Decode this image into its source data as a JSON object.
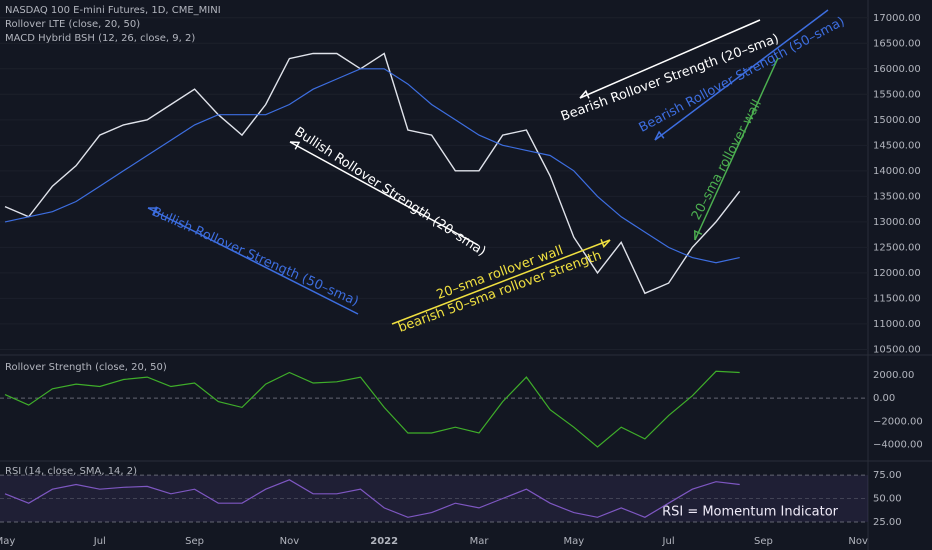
{
  "header": {
    "lines": [
      "NASDAQ 100 E-mini Futures, 1D, CME_MINI",
      "Rollover LTE (close, 20, 50)",
      "MACD Hybrid BSH (12, 26, close, 9, 2)"
    ]
  },
  "chart_data": [
    {
      "type": "line",
      "categories": [
        "May",
        null,
        null,
        null,
        "Jul",
        null,
        null,
        null,
        "Sep",
        null,
        null,
        null,
        "Nov",
        null,
        null,
        null,
        "2022",
        null,
        null,
        null,
        "Mar",
        null,
        null,
        null,
        "May",
        null,
        null,
        null,
        "Jul",
        null,
        null,
        null,
        "Sep",
        null,
        null,
        null,
        "Nov"
      ],
      "series": [
        {
          "color": "#e0e3eb",
          "values": [
            13300,
            13100,
            13700,
            14100,
            14700,
            14900,
            15000,
            15300,
            15600,
            15100,
            14700,
            15300,
            16200,
            16300,
            16300,
            16000,
            16300,
            14800,
            14700,
            14000,
            14000,
            14700,
            14800,
            13900,
            12700,
            12000,
            12600,
            11600,
            11800,
            12500,
            13000,
            13600,
            null,
            null,
            null,
            null,
            null
          ]
        },
        {
          "color": "#3d6ee0",
          "values": [
            13000,
            13100,
            13200,
            13400,
            13700,
            14000,
            14300,
            14600,
            14900,
            15100,
            15100,
            15100,
            15300,
            15600,
            15800,
            16000,
            16000,
            15700,
            15300,
            15000,
            14700,
            14500,
            14400,
            14300,
            14000,
            13500,
            13100,
            12800,
            12500,
            12300,
            12200,
            12300,
            null,
            null,
            null,
            null,
            null
          ]
        }
      ],
      "ylim": [
        10450,
        17250
      ],
      "yticks": [
        {
          "value": 10500,
          "label": "10500.00"
        },
        {
          "value": 11000,
          "label": "11000.00"
        },
        {
          "value": 11500,
          "label": "11500.00"
        },
        {
          "value": 12000,
          "label": "12000.00"
        },
        {
          "value": 12500,
          "label": "12500.00"
        },
        {
          "value": 13000,
          "label": "13000.00"
        },
        {
          "value": 13500,
          "label": "13500.00"
        },
        {
          "value": 14000,
          "label": "14000.00"
        },
        {
          "value": 14500,
          "label": "14500.00"
        },
        {
          "value": 15000,
          "label": "15000.00"
        },
        {
          "value": 15500,
          "label": "15500.00"
        },
        {
          "value": 16000,
          "label": "16000.00"
        },
        {
          "value": 16500,
          "label": "16500.00"
        },
        {
          "value": 17000,
          "label": "17000.00"
        }
      ],
      "annotations": [
        {
          "text": "Bearish Rollover Strength (20–sma)",
          "color": "#ffffff"
        },
        {
          "text": "Bearish Rollover Strength (50–sma)",
          "color": "#3d6ee0"
        },
        {
          "text": "20–sma rollover wall",
          "color": "#4caf50"
        },
        {
          "text": "Bullish Rollover Strength (20–sma)",
          "color": "#ffffff"
        },
        {
          "text": "Bullish Rollover Strength (50–sma)",
          "color": "#3d6ee0"
        },
        {
          "text": "20–sma rollover wall",
          "color": "#f0e040"
        },
        {
          "text": "bearish 50–sma rollover strength",
          "color": "#f0e040"
        }
      ]
    },
    {
      "type": "line",
      "title": "Rollover Strength (close, 20, 50)",
      "series": [
        {
          "color": "#3fae2a",
          "values": [
            300,
            -600,
            800,
            1200,
            1000,
            1600,
            1800,
            1000,
            1300,
            -300,
            -800,
            1200,
            2200,
            1300,
            1400,
            1800,
            -800,
            -3000,
            -3000,
            -2500,
            -3000,
            -300,
            1800,
            -1000,
            -2500,
            -4200,
            -2500,
            -3500,
            -1500,
            200,
            2300,
            2200,
            null,
            null,
            null,
            null,
            null
          ]
        }
      ],
      "ylim": [
        -5400,
        3700
      ],
      "yticks": [
        {
          "value": -4000,
          "label": "−4000.00"
        },
        {
          "value": -2000,
          "label": "−2000.00"
        },
        {
          "value": 0,
          "label": "0.00"
        },
        {
          "value": 2000,
          "label": "2000.00"
        }
      ]
    },
    {
      "type": "line",
      "title": "RSI (14, close, SMA, 14, 2)",
      "note": "RSI = Momentum Indicator",
      "series": [
        {
          "color": "#7e57c2",
          "values": [
            55,
            45,
            60,
            65,
            60,
            62,
            63,
            55,
            60,
            45,
            45,
            60,
            70,
            55,
            55,
            60,
            40,
            30,
            35,
            45,
            40,
            50,
            60,
            45,
            35,
            30,
            40,
            30,
            45,
            60,
            68,
            65,
            null,
            null,
            null,
            null,
            null
          ]
        }
      ],
      "ylim": [
        10,
        89
      ],
      "yticks": [
        {
          "value": 25,
          "label": "25.00"
        },
        {
          "value": 50,
          "label": "50.00"
        },
        {
          "value": 75,
          "label": "75.00"
        }
      ]
    }
  ]
}
